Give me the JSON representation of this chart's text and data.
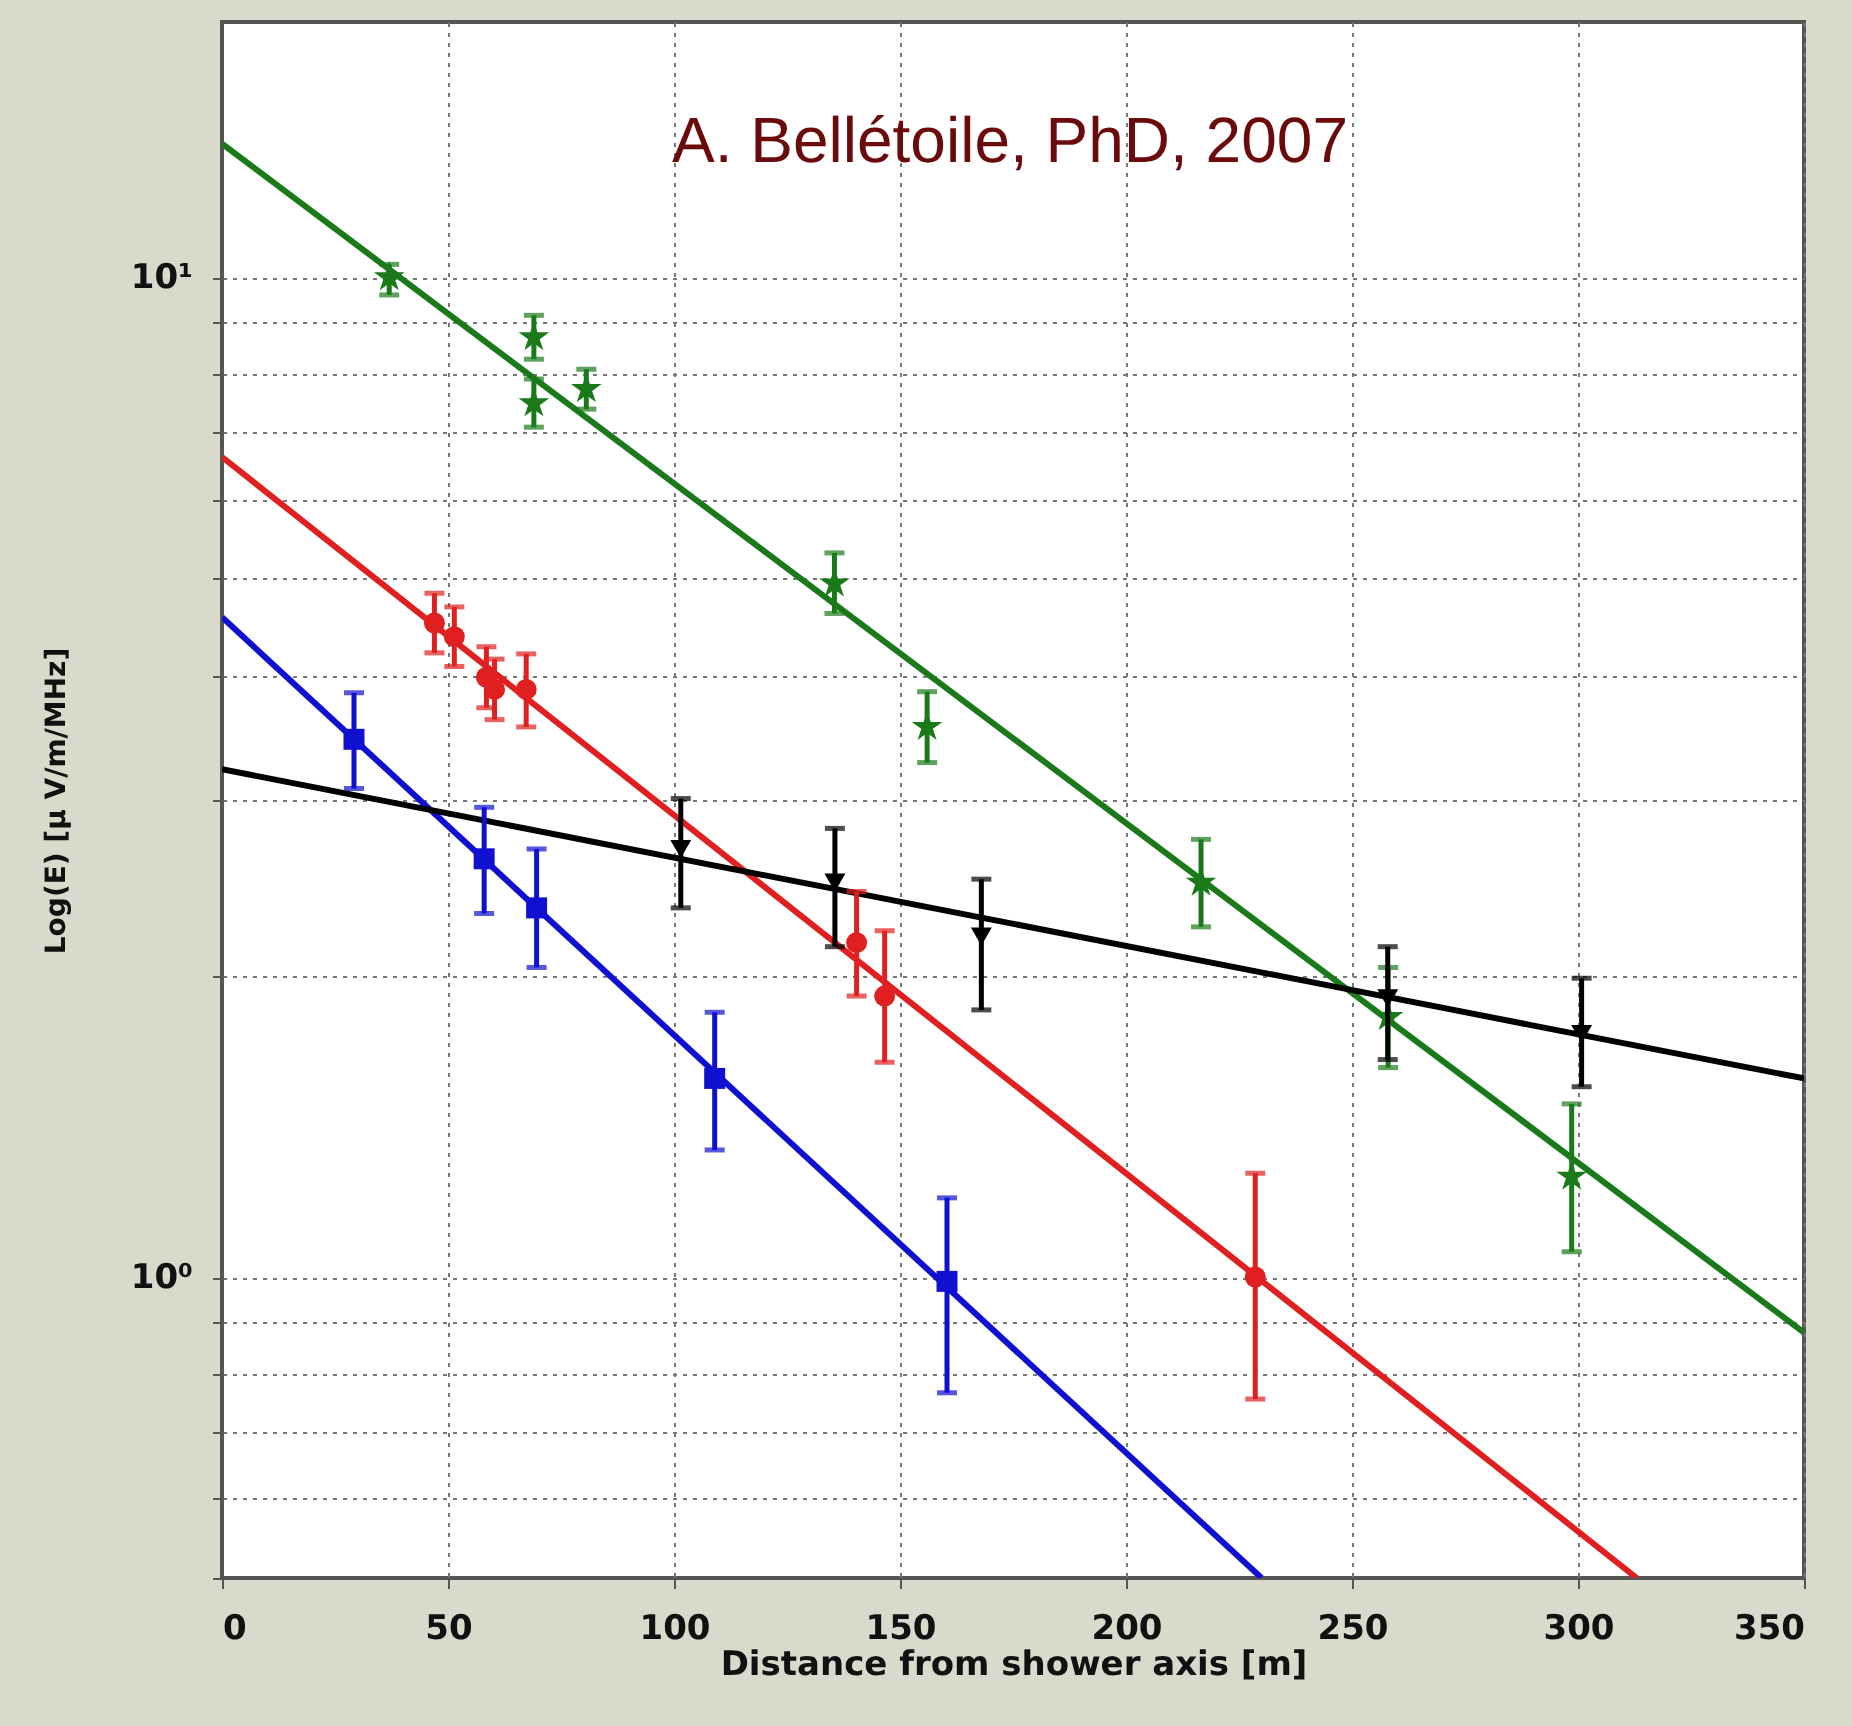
{
  "chart_data": {
    "type": "scatter",
    "xlabel": "Distance from shower axis [m]",
    "ylabel": "Log(E) [µ V/m/MHz]",
    "log": "y",
    "grid": true,
    "xlim": [
      0,
      350
    ],
    "ylim": [
      0.5,
      18
    ],
    "xticks": [
      0,
      50,
      100,
      150,
      200,
      250,
      300,
      350
    ],
    "yticks": [
      {
        "value": 0.5,
        "label": null
      },
      {
        "value": 0.6,
        "label": null
      },
      {
        "value": 0.7,
        "label": null
      },
      {
        "value": 0.8,
        "label": null
      },
      {
        "value": 0.9,
        "label": null
      },
      {
        "value": 1,
        "label": "10⁰"
      },
      {
        "value": 2,
        "label": null
      },
      {
        "value": 3,
        "label": null
      },
      {
        "value": 4,
        "label": null
      },
      {
        "value": 5,
        "label": null
      },
      {
        "value": 6,
        "label": null
      },
      {
        "value": 7,
        "label": null
      },
      {
        "value": 8,
        "label": null
      },
      {
        "value": 9,
        "label": null
      },
      {
        "value": 10,
        "label": "10¹"
      }
    ],
    "annotations": [
      "A. Bellétoile, PhD, 2007"
    ],
    "series": [
      {
        "type": "line",
        "color": "#1a7a1a",
        "marker": "none",
        "x": [
          0,
          350
        ],
        "values": [
          13.6,
          0.88
        ]
      },
      {
        "type": "line",
        "color": "#e02020",
        "marker": "none",
        "x": [
          0,
          313
        ],
        "values": [
          6.61,
          0.5
        ]
      },
      {
        "type": "line",
        "color": "#1010d0",
        "marker": "none",
        "x": [
          0,
          230
        ],
        "values": [
          4.57,
          0.5
        ]
      },
      {
        "type": "line",
        "color": "#000000",
        "marker": "none",
        "x": [
          0,
          350
        ],
        "values": [
          3.22,
          1.58
        ]
      },
      {
        "color": "#1a7a1a",
        "marker": "star",
        "x": [
          37,
          69,
          69,
          80.6,
          135.5,
          156,
          216.6,
          258,
          298.6
        ],
        "values": [
          10.0,
          8.71,
          7.48,
          7.73,
          4.94,
          3.55,
          2.48,
          1.82,
          1.26
        ],
        "errors": [
          [
            9.6,
            10.3
          ],
          [
            8.28,
            9.16
          ],
          [
            7.08,
            7.91
          ],
          [
            7.38,
            8.09
          ],
          [
            4.61,
            5.3
          ],
          [
            3.27,
            3.85
          ],
          [
            2.24,
            2.74
          ],
          [
            1.62,
            2.04
          ],
          [
            1.06,
            1.49
          ]
        ]
      },
      {
        "color": "#e02020",
        "marker": "circle",
        "x": [
          47,
          51.4,
          58.5,
          60.3,
          67.3,
          140.4,
          146.6,
          228.6
        ],
        "values": [
          4.51,
          4.37,
          3.98,
          3.87,
          3.87,
          2.16,
          1.91,
          1.0
        ],
        "errors": [
          [
            4.21,
            4.83
          ],
          [
            4.08,
            4.68
          ],
          [
            3.71,
            4.27
          ],
          [
            3.61,
            4.15
          ],
          [
            3.55,
            4.2
          ],
          [
            1.91,
            2.43
          ],
          [
            1.64,
            2.22
          ],
          [
            0.755,
            1.27
          ]
        ]
      },
      {
        "color": "#1010d0",
        "marker": "square",
        "x": [
          29.2,
          58,
          69.6,
          109,
          160.4
        ],
        "values": [
          3.45,
          2.62,
          2.34,
          1.58,
          0.99
        ],
        "errors": [
          [
            3.08,
            3.84
          ],
          [
            2.31,
            2.95
          ],
          [
            2.04,
            2.68
          ],
          [
            1.34,
            1.84
          ],
          [
            0.766,
            1.2
          ]
        ]
      },
      {
        "color": "#000000",
        "marker": "triangle",
        "x": [
          101.5,
          135.6,
          168,
          257.9,
          300.8
        ],
        "values": [
          2.68,
          2.48,
          2.19,
          1.9,
          1.75
        ],
        "errors": [
          [
            2.34,
            3.01
          ],
          [
            2.14,
            2.81
          ],
          [
            1.85,
            2.5
          ],
          [
            1.65,
            2.14
          ],
          [
            1.55,
            1.99
          ]
        ]
      }
    ]
  }
}
